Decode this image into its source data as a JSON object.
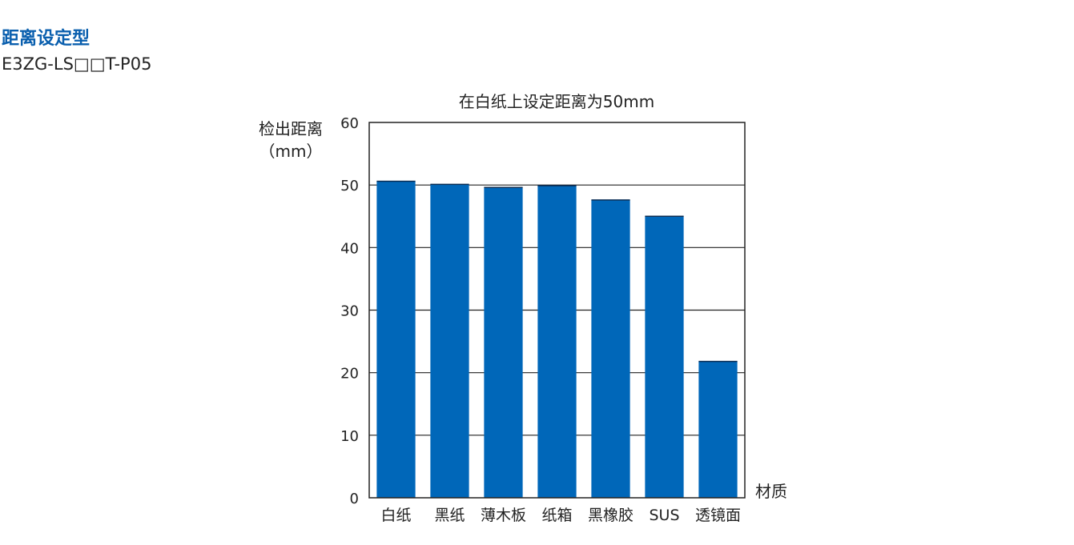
{
  "heading": "距离设定型",
  "model": "E3ZG-LS□□T-P05",
  "chart_data": {
    "type": "bar",
    "title": "在白纸上设定距离为50mm",
    "ylabel": "检出距离",
    "yunit": "（mm）",
    "xlabel": "材质",
    "ylim": [
      0,
      60
    ],
    "yticks": [
      0,
      10,
      20,
      30,
      40,
      50,
      60
    ],
    "grid": true,
    "categories": [
      "白纸",
      "黑纸",
      "薄木板",
      "纸箱",
      "黑橡胶",
      "SUS",
      "透镜面"
    ],
    "values": [
      50.6,
      50.1,
      49.6,
      49.9,
      47.6,
      45.0,
      21.8
    ],
    "bar_color": "#0067b9"
  }
}
